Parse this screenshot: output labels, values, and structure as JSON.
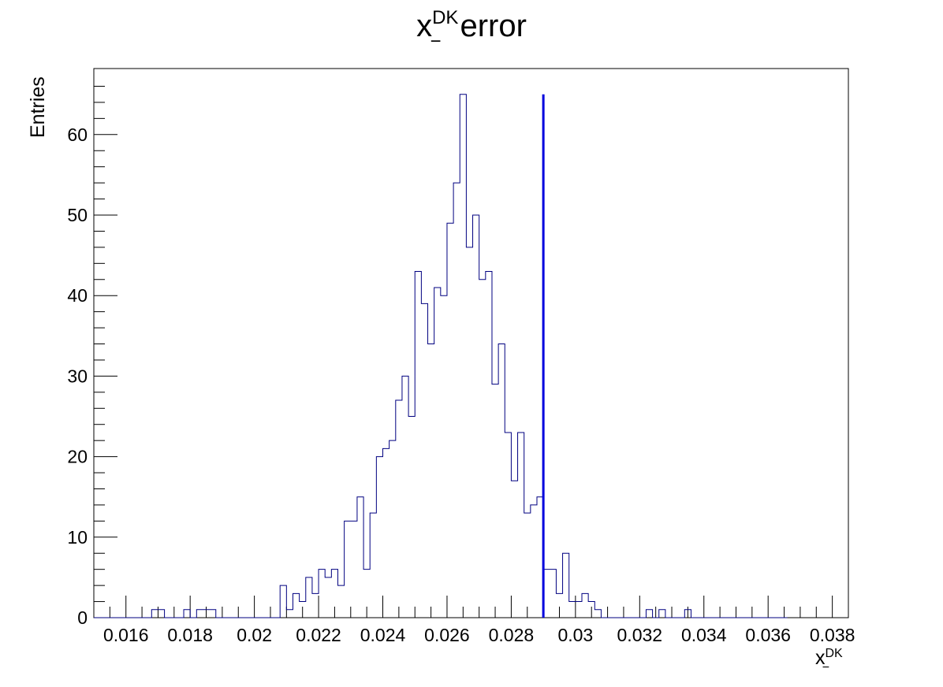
{
  "chart_data": {
    "type": "histogram",
    "title": {
      "base": "x",
      "sup": "DK",
      "sub": "−",
      "rest": "error"
    },
    "xlabel": {
      "base": "x",
      "sup": "DK",
      "sub": "−"
    },
    "ylabel": "Entries",
    "xlim": [
      0.015,
      0.0385
    ],
    "ylim": [
      0,
      68.2
    ],
    "grid": false,
    "x_ticks": [
      "0.016",
      "0.018",
      "0.02",
      "0.022",
      "0.024",
      "0.026",
      "0.028",
      "0.03",
      "0.032",
      "0.034",
      "0.036",
      "0.038"
    ],
    "y_ticks": [
      "0",
      "10",
      "20",
      "30",
      "40",
      "50",
      "60"
    ],
    "series": [
      {
        "bin_start": 0.015,
        "bin_width": 0.0002,
        "counts": [
          0,
          0,
          0,
          0,
          0,
          0,
          0,
          0,
          0,
          1,
          1,
          0,
          0,
          0,
          1,
          0,
          1,
          1,
          1,
          0,
          0,
          0,
          0,
          0,
          0,
          0,
          0,
          0,
          0,
          4,
          1,
          3,
          2,
          5,
          3,
          6,
          5,
          6,
          4,
          12,
          12,
          15,
          6,
          13,
          20,
          21,
          22,
          27,
          30,
          25,
          43,
          39,
          34,
          41,
          40,
          49,
          54,
          65,
          46,
          50,
          42,
          43,
          29,
          34,
          23,
          17,
          23,
          13,
          14,
          15,
          6,
          6,
          3,
          8,
          2,
          2,
          3,
          2,
          1,
          0,
          0,
          0,
          0,
          0,
          0,
          0,
          1,
          0,
          1,
          0,
          0,
          0,
          1,
          0,
          0,
          0,
          0,
          0,
          0,
          0,
          0,
          0,
          0,
          0,
          0,
          0,
          0,
          0
        ],
        "color": "#000080"
      }
    ],
    "reference_line": {
      "x": 0.029,
      "color": "#0000dd"
    },
    "colors": {
      "frame": "#000000",
      "background": "#ffffff"
    }
  }
}
